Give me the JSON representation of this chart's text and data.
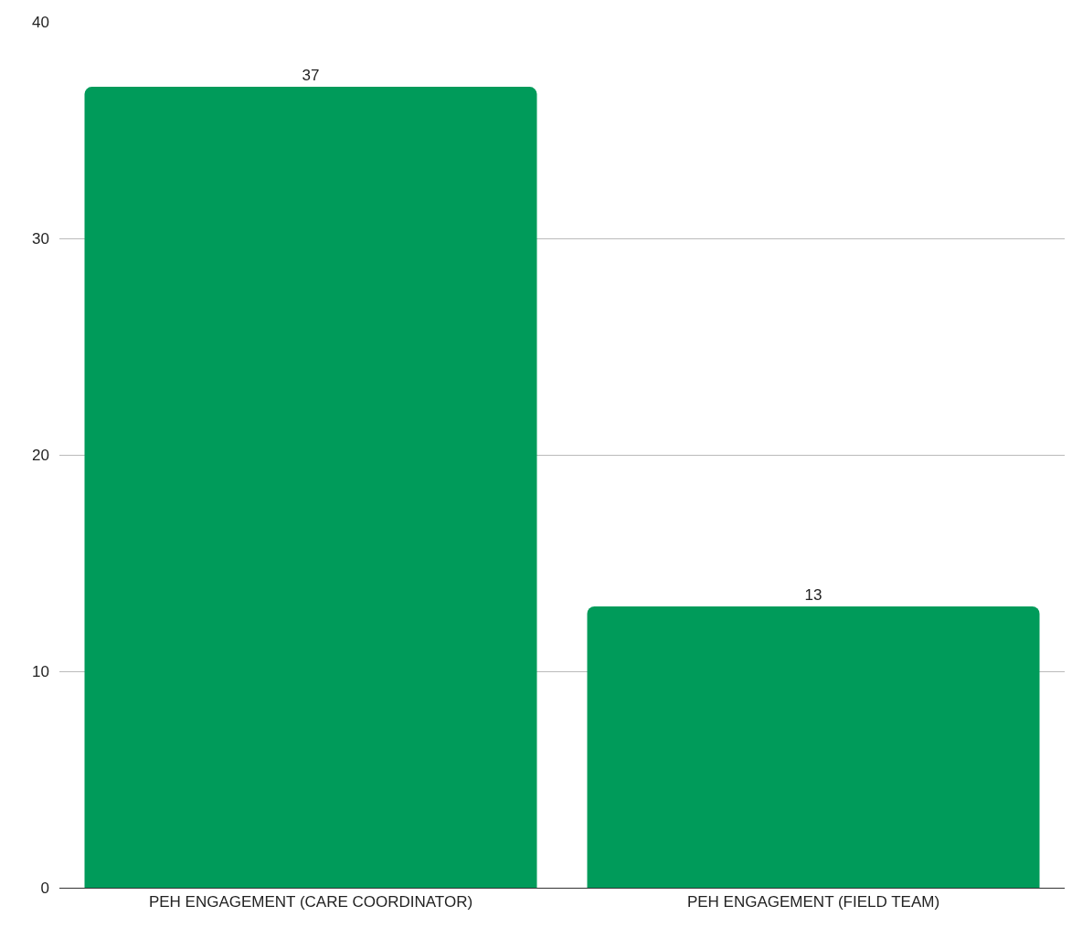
{
  "chart_data": {
    "type": "bar",
    "categories": [
      "PEH ENGAGEMENT (CARE COORDINATOR)",
      "PEH ENGAGEMENT (FIELD TEAM)"
    ],
    "values": [
      37,
      13
    ],
    "color": "#009b5a",
    "ylim": [
      0,
      40
    ],
    "yticks": [
      0,
      10,
      20,
      30,
      40
    ],
    "grid": true,
    "data_labels": true
  }
}
